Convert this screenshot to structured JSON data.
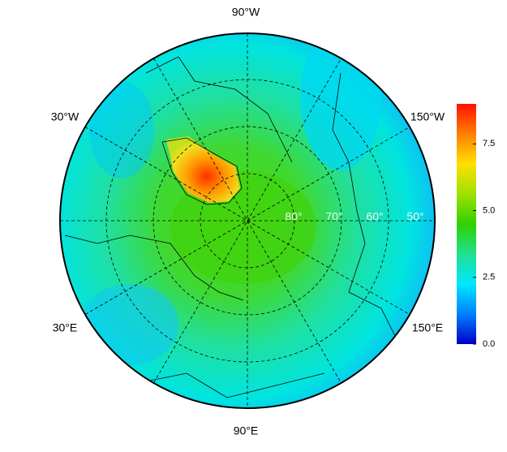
{
  "map": {
    "meridian_labels": {
      "top": "90°W",
      "upper_left": "30°W",
      "upper_right": "150°W",
      "lower_left": "30°E",
      "lower_right": "150°E",
      "bottom": "90°E"
    },
    "latitude_labels": [
      "80°",
      "70°",
      "60°",
      "50°"
    ],
    "colorbar": {
      "lim": [
        0,
        9
      ],
      "ticks": [
        {
          "value": 0,
          "label": "0.0"
        },
        {
          "value": 2.5,
          "label": "2.5"
        },
        {
          "value": 5,
          "label": "5.0"
        },
        {
          "value": 7.5,
          "label": "7.5"
        }
      ],
      "colors": [
        "#0000c8",
        "#0080ff",
        "#00e8ff",
        "#20e090",
        "#30d000",
        "#a0e000",
        "#ffe000",
        "#ff8000",
        "#ff1000"
      ]
    }
  }
}
